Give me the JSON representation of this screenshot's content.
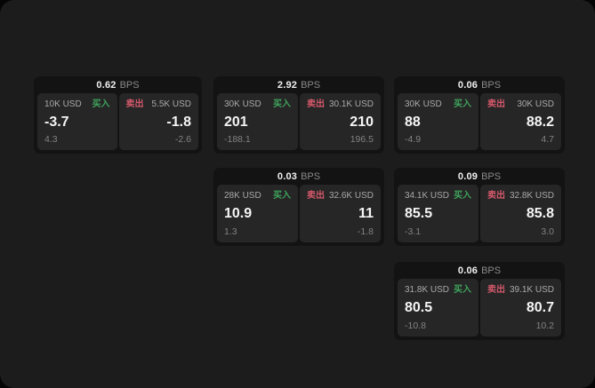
{
  "page": {
    "bps_unit": "BPS",
    "buy_label": "买入",
    "sell_label": "卖出"
  },
  "colors": {
    "page_bg": "#1c1c1c",
    "card_bg": "#131313",
    "panel_bg": "#262626",
    "buy_green": "#3fa45c",
    "sell_red": "#d4596b"
  },
  "cards": [
    {
      "bps": "0.62",
      "buy": {
        "amount": "10K USD",
        "price": "-3.7",
        "delta": "4.3"
      },
      "sell": {
        "amount": "5.5K USD",
        "price": "-1.8",
        "delta": "-2.6"
      }
    },
    {
      "bps": "2.92",
      "buy": {
        "amount": "30K USD",
        "price": "201",
        "delta": "-188.1"
      },
      "sell": {
        "amount": "30.1K USD",
        "price": "210",
        "delta": "196.5"
      }
    },
    {
      "bps": "0.06",
      "buy": {
        "amount": "30K USD",
        "price": "88",
        "delta": "-4.9"
      },
      "sell": {
        "amount": "30K USD",
        "price": "88.2",
        "delta": "4.7"
      }
    },
    {
      "bps": "0.03",
      "buy": {
        "amount": "28K USD",
        "price": "10.9",
        "delta": "1.3"
      },
      "sell": {
        "amount": "32.6K USD",
        "price": "11",
        "delta": "-1.8"
      }
    },
    {
      "bps": "0.09",
      "buy": {
        "amount": "34.1K USD",
        "price": "85.5",
        "delta": "-3.1"
      },
      "sell": {
        "amount": "32.8K USD",
        "price": "85.8",
        "delta": "3.0"
      }
    },
    {
      "bps": "0.06",
      "buy": {
        "amount": "31.8K USD",
        "price": "80.5",
        "delta": "-10.8"
      },
      "sell": {
        "amount": "39.1K USD",
        "price": "80.7",
        "delta": "10.2"
      }
    }
  ]
}
